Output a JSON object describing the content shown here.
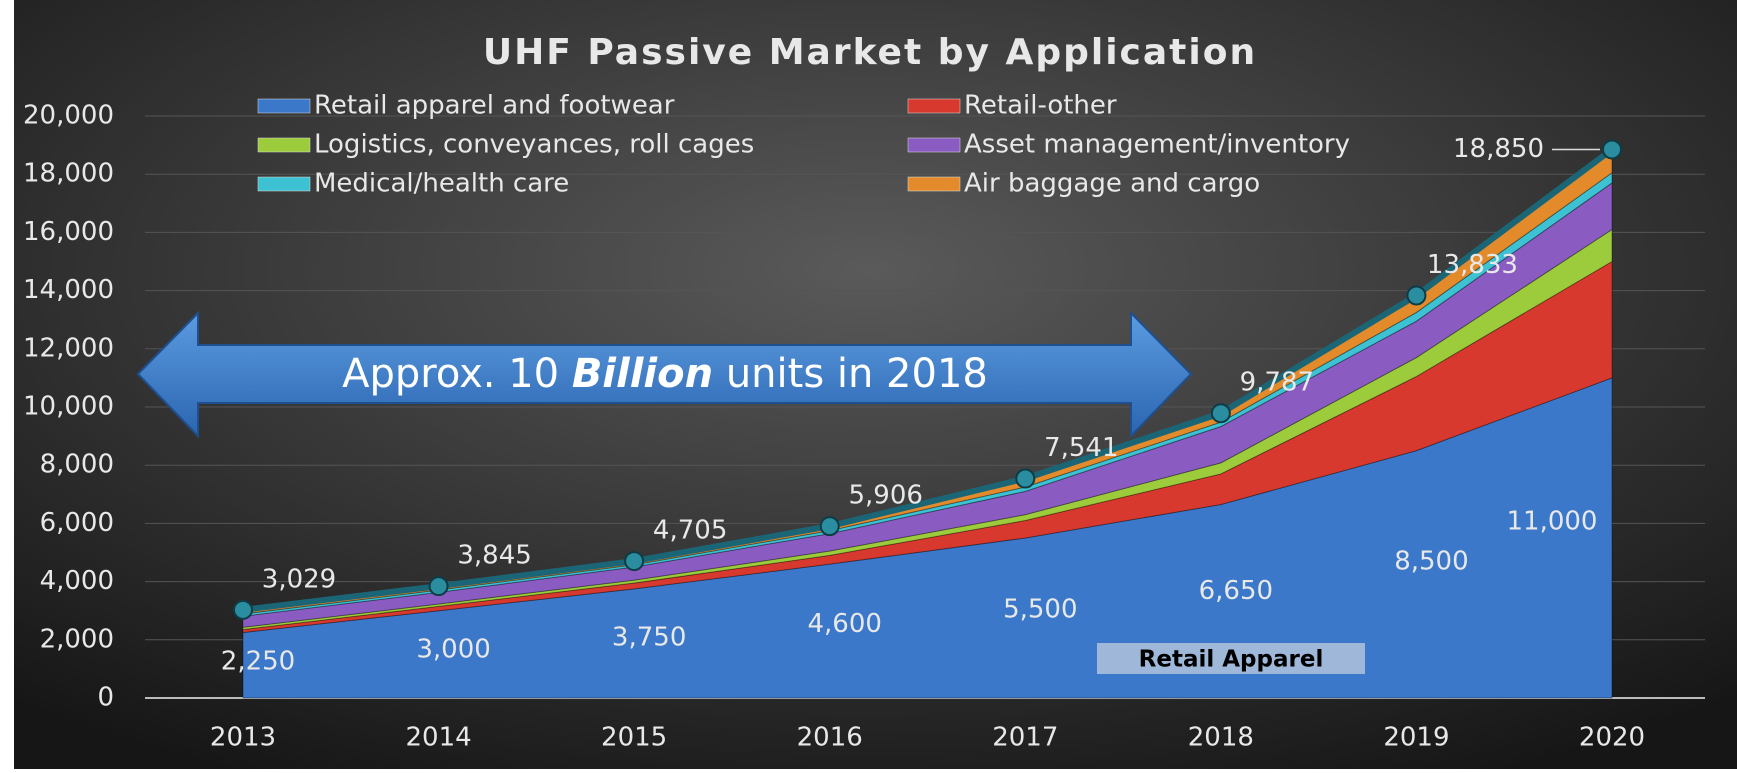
{
  "chart_data": {
    "type": "stacked_area",
    "title": "UHF Passive Market by Application",
    "categories": [
      "2013",
      "2014",
      "2015",
      "2016",
      "2017",
      "2018",
      "2019",
      "2020"
    ],
    "series": [
      {
        "name": "Retail apparel and footwear",
        "color": "#3b78c9",
        "values": [
          2250,
          3000,
          3750,
          4600,
          5500,
          6650,
          8500,
          11000
        ],
        "value_labels": [
          "2,250",
          "3,000",
          "3,750",
          "4,600",
          "5,500",
          "6,650",
          "8,500",
          "11,000"
        ]
      },
      {
        "name": "Retail-other",
        "color": "#d8392e",
        "values": [
          100,
          150,
          200,
          300,
          600,
          1050,
          2550,
          4000
        ]
      },
      {
        "name": "Logistics, conveyances, roll cages",
        "color": "#9ccc3c",
        "values": [
          80,
          80,
          100,
          150,
          200,
          380,
          650,
          1100
        ]
      },
      {
        "name": "Asset management/inventory",
        "color": "#8a5cc2",
        "values": [
          380,
          400,
          450,
          600,
          800,
          1250,
          1250,
          1600
        ]
      },
      {
        "name": "Medical/health care",
        "color": "#3cc2d2",
        "values": [
          80,
          80,
          80,
          100,
          150,
          150,
          300,
          350
        ]
      },
      {
        "name": "Air baggage and cargo",
        "color": "#e38b2b",
        "values": [
          139,
          135,
          125,
          156,
          291,
          307,
          583,
          800
        ]
      }
    ],
    "totals": {
      "color": "#1b6676",
      "values": [
        3029,
        3845,
        4705,
        5906,
        7541,
        9787,
        13833,
        18850
      ],
      "value_labels": [
        "3,029",
        "3,845",
        "4,705",
        "5,906",
        "7,541",
        "9,787",
        "13,833",
        "18,850"
      ]
    },
    "annotations": [
      {
        "category": "2017",
        "value": 7541,
        "label": "7,541"
      }
    ],
    "arrow_text": [
      "Approx. 10 ",
      "Billion",
      " units in 2018"
    ],
    "box_label": "Retail Apparel",
    "ylim": [
      0,
      20000
    ],
    "yticks": [
      0,
      {
        "value": 2000,
        "label": "2,000"
      },
      {
        "value": 4000,
        "label": "4,000"
      },
      {
        "value": 6000,
        "label": "6,000"
      },
      {
        "value": 8000,
        "label": "8,000"
      },
      {
        "value": 10000,
        "label": "10,000"
      },
      {
        "value": 12000,
        "label": "12,000"
      },
      {
        "value": 14000,
        "label": "14,000"
      },
      {
        "value": 16000,
        "label": "16,000"
      },
      {
        "value": 18000,
        "label": "18,000"
      },
      {
        "value": 20000,
        "label": "20,000"
      }
    ],
    "grid": true
  }
}
